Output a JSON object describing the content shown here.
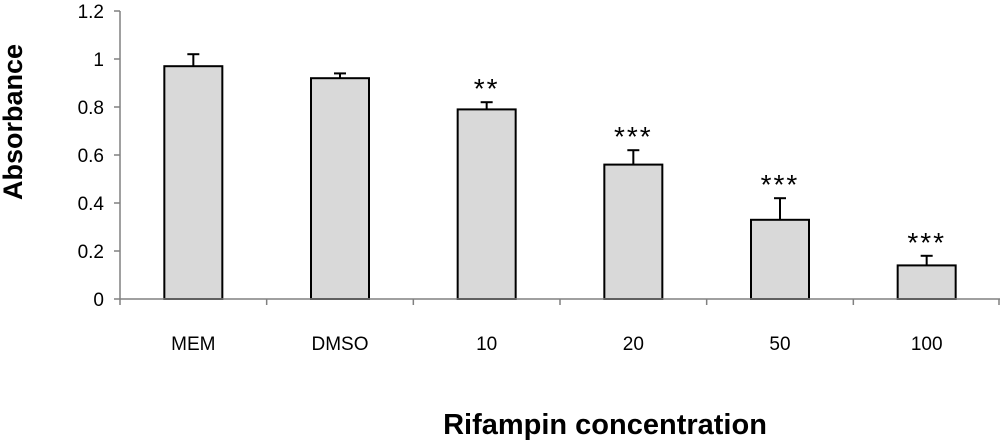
{
  "chart_data": {
    "type": "bar",
    "xlabel": "Rifampin concentration",
    "ylabel": "Absorbance",
    "ylim": [
      0,
      1.2
    ],
    "yticks": [
      "0",
      "0.2",
      "0.4",
      "0.6",
      "0.8",
      "1",
      "1.2"
    ],
    "ytick_values": [
      0,
      0.2,
      0.4,
      0.6,
      0.8,
      1.0,
      1.2
    ],
    "categories": [
      "MEM",
      "DMSO",
      "10",
      "20",
      "50",
      "100"
    ],
    "values": [
      0.97,
      0.92,
      0.79,
      0.56,
      0.33,
      0.14
    ],
    "errors": [
      0.05,
      0.02,
      0.03,
      0.06,
      0.09,
      0.04
    ],
    "annotations": [
      "",
      "",
      "**",
      "***",
      "***",
      "***"
    ],
    "grid": false,
    "colors": {
      "bar_fill": "#d9d9d9",
      "bar_stroke": "#000000",
      "axis": "#808080"
    }
  }
}
